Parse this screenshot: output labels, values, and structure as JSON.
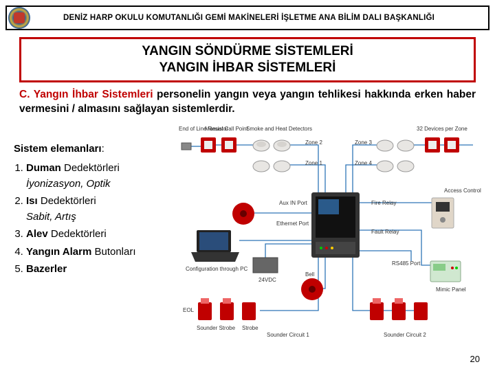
{
  "header": {
    "title": "DENİZ HARP OKULU KOMUTANLIĞI GEMİ MAKİNELERİ İŞLETME ANA BİLİM DALI BAŞKANLIĞI"
  },
  "title": {
    "line1": "YANGIN SÖNDÜRME SİSTEMLERİ",
    "line2": "YANGIN İHBAR SİSTEMLERİ"
  },
  "body": {
    "lead": "C. Yangın İhbar Sistemleri",
    "rest": " personelin yangın veya yangın tehlikesi hakkında erken haber vermesini / almasını sağlayan sistemlerdir."
  },
  "list": {
    "heading_bold": "Sistem elemanları",
    "heading_suffix": ":",
    "items": [
      {
        "bold": "Duman",
        "rest": " Dedektörleri",
        "sub": "İyonizasyon, Optik"
      },
      {
        "bold": "Isı",
        "rest": " Dedektörleri",
        "sub": "Sabit, Artış"
      },
      {
        "bold": "Alev",
        "rest": " Dedektörleri"
      },
      {
        "bold": "Yangın Alarm",
        "rest": " Butonları"
      },
      {
        "bold": "Bazerler",
        "rest": ""
      }
    ]
  },
  "diagram": {
    "labels": {
      "eol": "End of Line Resistor",
      "mcp": "Manual Call Point",
      "shd": "Smoke and Heat Detectors",
      "z1": "Zone 1",
      "z2": "Zone 2",
      "z3": "Zone 3",
      "z4": "Zone 4",
      "dev32": "32 Devices per Zone",
      "aux": "Aux IN Port",
      "eth": "Ethernet Port",
      "fire_relay": "Fire Relay",
      "fault_relay": "Fault Relay",
      "access": "Access Control",
      "config": "Configuration through PC",
      "v24": "24VDC",
      "bell": "Bell",
      "rs485": "RS485 Port",
      "mimic": "Mimic Panel",
      "eol2": "EOL",
      "ss": "Sounder Strobe",
      "strobe": "Strobe",
      "sc1": "Sounder Circuit 1",
      "sc2": "Sounder Circuit 2"
    },
    "colors": {
      "wire": "#2e75b6",
      "callpoint": "#c00000",
      "detector": "#e8e6e3",
      "panel_body": "#333333",
      "panel_face": "#222222",
      "bell": "#c00000",
      "pc_screen": "#2a4d7a",
      "access": "#e0d6c8",
      "mimic": "#d0e8d0"
    }
  },
  "page_number": "20"
}
